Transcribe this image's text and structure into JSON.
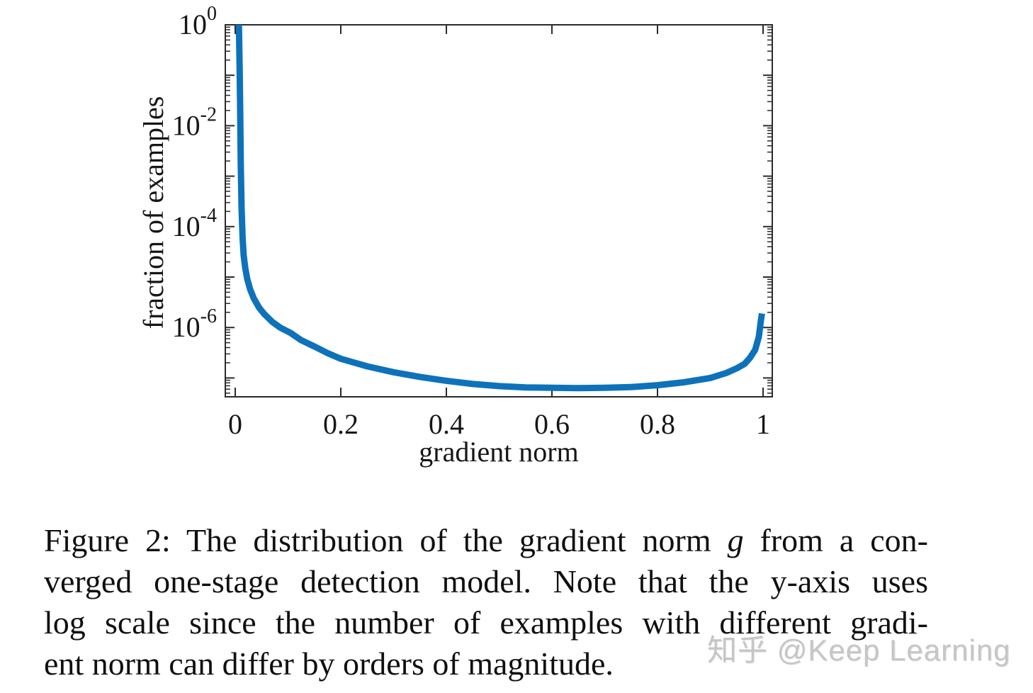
{
  "page": {
    "background": "#ffffff"
  },
  "chart_data": {
    "type": "line",
    "title": "",
    "xlabel": "gradient norm",
    "ylabel": "fraction of examples",
    "yscale": "log",
    "grid": false,
    "legend": null,
    "xlim": [
      -0.019,
      1.017
    ],
    "ylim": [
      4.2e-08,
      1.0
    ],
    "xticks": [
      0,
      0.2,
      0.4,
      0.6,
      0.8,
      1
    ],
    "xtick_labels": [
      "0",
      "0.2",
      "0.4",
      "0.6",
      "0.8",
      "1"
    ],
    "ytick_exponents": [
      0,
      -2,
      -4,
      -6
    ],
    "ytick_labels": [
      "10^0",
      "10^-2",
      "10^-4",
      "10^-6"
    ],
    "line_color": "#0e72ba",
    "axis_color": "#2b2b2b",
    "series": [
      {
        "name": "fraction of examples vs gradient norm",
        "points": [
          [
            0.007,
            1.0
          ],
          [
            0.0085,
            0.12
          ],
          [
            0.0095,
            0.015
          ],
          [
            0.0105,
            0.0018
          ],
          [
            0.012,
            0.00025
          ],
          [
            0.014,
            6e-05
          ],
          [
            0.016,
            2.7e-05
          ],
          [
            0.019,
            1.5e-05
          ],
          [
            0.023,
            9e-06
          ],
          [
            0.028,
            5.8e-06
          ],
          [
            0.035,
            3.8e-06
          ],
          [
            0.045,
            2.5e-06
          ],
          [
            0.055,
            1.85e-06
          ],
          [
            0.07,
            1.3e-06
          ],
          [
            0.085,
            1e-06
          ],
          [
            0.105,
            7.8e-07
          ],
          [
            0.125,
            5.6e-07
          ],
          [
            0.15,
            4.2e-07
          ],
          [
            0.175,
            3.1e-07
          ],
          [
            0.2,
            2.4e-07
          ],
          [
            0.25,
            1.7e-07
          ],
          [
            0.3,
            1.3e-07
          ],
          [
            0.35,
            1.05e-07
          ],
          [
            0.4,
            8.8e-08
          ],
          [
            0.45,
            7.6e-08
          ],
          [
            0.5,
            6.9e-08
          ],
          [
            0.55,
            6.5e-08
          ],
          [
            0.6,
            6.4e-08
          ],
          [
            0.65,
            6.3e-08
          ],
          [
            0.7,
            6.4e-08
          ],
          [
            0.75,
            6.6e-08
          ],
          [
            0.8,
            7.2e-08
          ],
          [
            0.85,
            8.2e-08
          ],
          [
            0.9,
            1e-07
          ],
          [
            0.93,
            1.25e-07
          ],
          [
            0.95,
            1.55e-07
          ],
          [
            0.965,
            1.9e-07
          ],
          [
            0.975,
            2.5e-07
          ],
          [
            0.985,
            3.6e-07
          ],
          [
            0.992,
            6.5e-07
          ],
          [
            0.996,
            1.4e-06
          ],
          [
            0.998,
            1.9e-06
          ]
        ]
      }
    ]
  },
  "caption": {
    "lines": [
      [
        {
          "text": "Figure 2: The distribution of the gradient norm ",
          "italic": false
        },
        {
          "text": "g",
          "italic": true
        },
        {
          "text": " from a con-",
          "italic": false
        }
      ],
      [
        {
          "text": "verged one-stage detection model. Note that the y-axis uses",
          "italic": false
        }
      ],
      [
        {
          "text": "log scale since the number of examples with different gradi-",
          "italic": false
        }
      ],
      [
        {
          "text": "ent norm can differ by orders of magnitude.",
          "italic": false
        }
      ]
    ]
  },
  "watermark": {
    "text": "知乎 @Keep Learning",
    "color": "#c6c6c6"
  }
}
